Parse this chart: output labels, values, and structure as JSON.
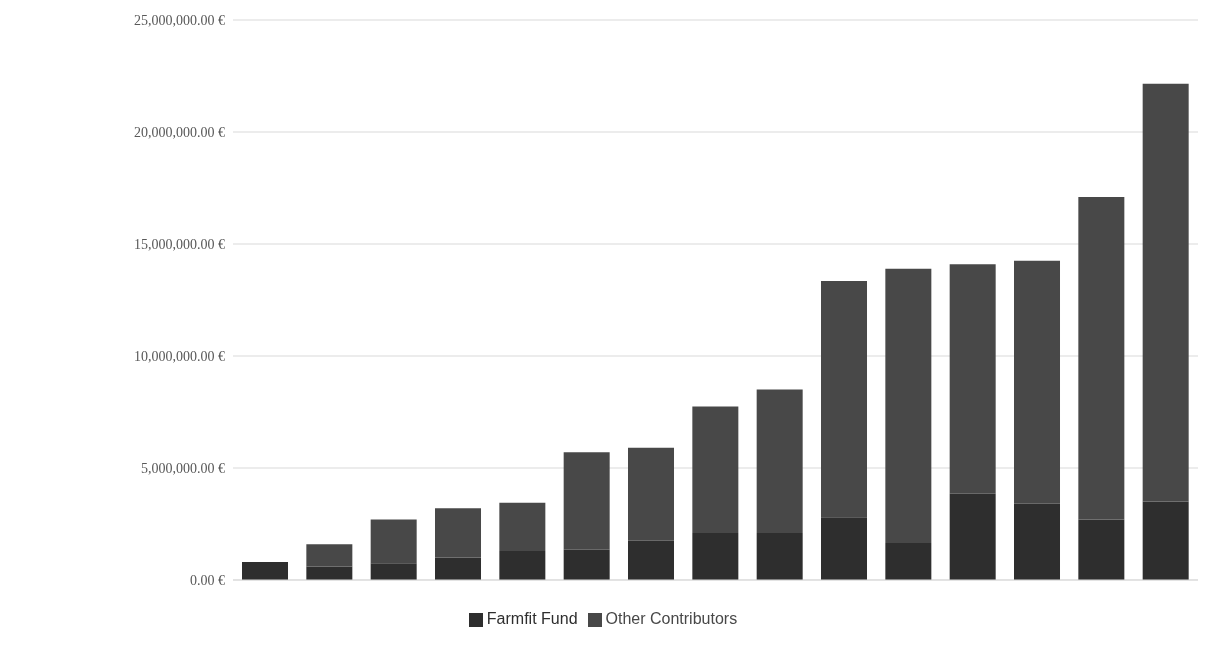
{
  "chart_data": {
    "type": "bar",
    "stacked": true,
    "categories": [
      null,
      null,
      null,
      null,
      null,
      null,
      null,
      null,
      null,
      null,
      null,
      null,
      null,
      null,
      null
    ],
    "series": [
      {
        "name": "Farmfit Fund",
        "color": "#2e2e2e",
        "values": [
          800000,
          600000,
          750000,
          1000000,
          1300000,
          1350000,
          1750000,
          2100000,
          2100000,
          2800000,
          1650000,
          3850000,
          3400000,
          2700000,
          3500000
        ]
      },
      {
        "name": "Other Contributors",
        "color": "#484848",
        "values": [
          0,
          1000000,
          1950000,
          2200000,
          2150000,
          4350000,
          4150000,
          5650000,
          6400000,
          10550000,
          12250000,
          10250000,
          10850000,
          14400000,
          18650000
        ]
      }
    ],
    "ylim": [
      0,
      25000000
    ],
    "yticks": [
      {
        "value": 0,
        "label": "0.00 €"
      },
      {
        "value": 5000000,
        "label": "5,000,000.00 €"
      },
      {
        "value": 10000000,
        "label": "10,000,000.00 €"
      },
      {
        "value": 15000000,
        "label": "15,000,000.00 €"
      },
      {
        "value": 20000000,
        "label": "20,000,000.00 €"
      },
      {
        "value": 25000000,
        "label": "25,000,000.00 €"
      }
    ],
    "grid": "y",
    "legend": "bottom"
  }
}
